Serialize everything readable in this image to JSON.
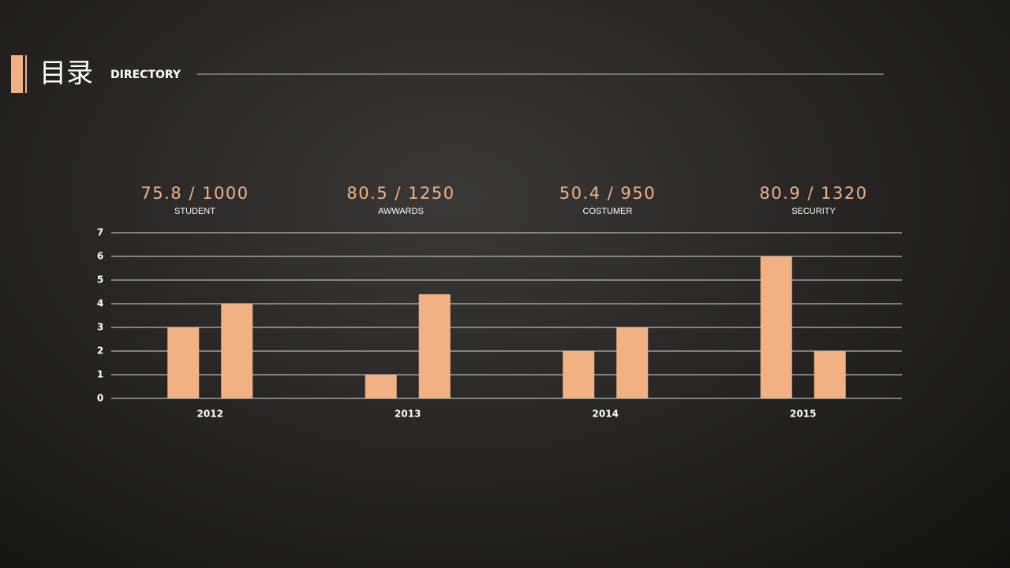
{
  "header": {
    "title": "目录",
    "subtitle": "DIRECTORY"
  },
  "stats": [
    {
      "value": "75.8 / 1000",
      "label": "STUDENT"
    },
    {
      "value": "80.5 / 1250",
      "label": "AWWARDS"
    },
    {
      "value": "50.4 / 950",
      "label": "COSTUMER"
    },
    {
      "value": "80.9 / 1320",
      "label": "SECURITY"
    }
  ],
  "chart_data": {
    "type": "bar",
    "categories": [
      "2012",
      "2013",
      "2014",
      "2015"
    ],
    "series": [
      {
        "color": "#f2b183",
        "values": [
          3,
          1,
          2,
          6
        ]
      },
      {
        "color": "#f2b183",
        "values": [
          4,
          4.4,
          3,
          2
        ]
      }
    ],
    "ylim": [
      0,
      7
    ],
    "yticks": [
      0,
      1,
      2,
      3,
      4,
      5,
      6,
      7
    ],
    "grid": true
  }
}
